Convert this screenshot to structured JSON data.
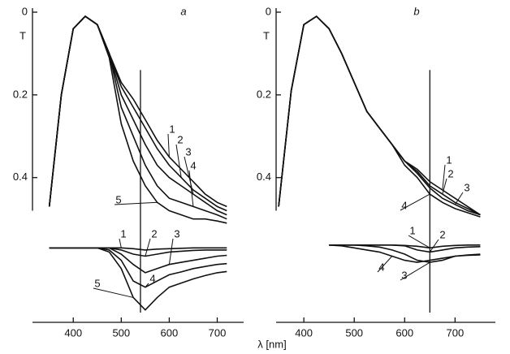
{
  "xlabel": "λ [nm]",
  "chart_data": [
    {
      "type": "line",
      "panel": "a",
      "ylabel": "T",
      "y_inverted": true,
      "xlim": [
        315,
        755
      ],
      "xticks": [
        400,
        500,
        600,
        700
      ],
      "ylim": [
        0,
        0.75
      ],
      "yticks": [
        0,
        0.2,
        0.4
      ],
      "vline": 540,
      "x": [
        350,
        375,
        400,
        425,
        450,
        475,
        500,
        525,
        550,
        575,
        600,
        625,
        650,
        675,
        700,
        720
      ],
      "series": [
        {
          "name": "1",
          "color": "#111111",
          "values": [
            0.47,
            0.2,
            0.04,
            0.01,
            0.03,
            0.1,
            0.17,
            0.21,
            0.26,
            0.31,
            0.35,
            0.38,
            0.41,
            0.44,
            0.46,
            0.47
          ]
        },
        {
          "name": "2",
          "color": "#111111",
          "values": [
            0.47,
            0.2,
            0.04,
            0.01,
            0.03,
            0.1,
            0.18,
            0.23,
            0.28,
            0.33,
            0.37,
            0.4,
            0.43,
            0.45,
            0.47,
            0.48
          ]
        },
        {
          "name": "3",
          "color": "#111111",
          "values": [
            0.47,
            0.2,
            0.04,
            0.01,
            0.03,
            0.1,
            0.2,
            0.26,
            0.32,
            0.37,
            0.4,
            0.42,
            0.44,
            0.46,
            0.48,
            0.49
          ]
        },
        {
          "name": "4",
          "color": "#111111",
          "values": [
            0.47,
            0.2,
            0.04,
            0.01,
            0.03,
            0.1,
            0.23,
            0.3,
            0.37,
            0.42,
            0.45,
            0.46,
            0.47,
            0.48,
            0.49,
            0.5
          ]
        },
        {
          "name": "5",
          "color": "#111111",
          "values": [
            0.47,
            0.2,
            0.04,
            0.01,
            0.03,
            0.11,
            0.27,
            0.36,
            0.42,
            0.46,
            0.48,
            0.49,
            0.5,
            0.5,
            0.505,
            0.51
          ]
        },
        {
          "name": "1",
          "color": "#111111",
          "values": [
            0.57,
            0.57,
            0.57,
            0.57,
            0.57,
            0.57,
            0.57,
            0.572,
            0.575,
            0.573,
            0.572,
            0.571,
            0.57,
            0.57,
            0.57,
            0.57
          ]
        },
        {
          "name": "2",
          "color": "#111111",
          "values": [
            0.57,
            0.57,
            0.57,
            0.57,
            0.57,
            0.57,
            0.575,
            0.585,
            0.59,
            0.585,
            0.58,
            0.578,
            0.576,
            0.575,
            0.575,
            0.575
          ]
        },
        {
          "name": "3",
          "color": "#111111",
          "values": [
            0.57,
            0.57,
            0.57,
            0.57,
            0.57,
            0.57,
            0.585,
            0.61,
            0.63,
            0.62,
            0.61,
            0.605,
            0.6,
            0.595,
            0.59,
            0.588
          ]
        },
        {
          "name": "4",
          "color": "#111111",
          "values": [
            0.57,
            0.57,
            0.57,
            0.57,
            0.57,
            0.575,
            0.6,
            0.65,
            0.665,
            0.65,
            0.635,
            0.628,
            0.62,
            0.615,
            0.61,
            0.608
          ]
        },
        {
          "name": "5",
          "color": "#111111",
          "values": [
            0.57,
            0.57,
            0.57,
            0.57,
            0.57,
            0.58,
            0.62,
            0.69,
            0.72,
            0.69,
            0.665,
            0.655,
            0.645,
            0.637,
            0.63,
            0.627
          ]
        }
      ]
    },
    {
      "type": "line",
      "panel": "b",
      "ylabel": "T",
      "y_inverted": true,
      "xlim": [
        345,
        780
      ],
      "xticks": [
        400,
        500,
        600,
        700
      ],
      "ylim": [
        0,
        0.75
      ],
      "yticks": [
        0,
        0.2,
        0.4
      ],
      "vline": 650,
      "x": [
        350,
        375,
        400,
        425,
        450,
        475,
        500,
        525,
        550,
        575,
        600,
        625,
        650,
        675,
        700,
        725,
        750
      ],
      "series": [
        {
          "name": "1",
          "color": "#111111",
          "values": [
            0.47,
            0.19,
            0.03,
            0.01,
            0.04,
            0.1,
            0.17,
            0.24,
            0.28,
            0.32,
            0.36,
            0.38,
            0.41,
            0.43,
            0.45,
            0.47,
            0.49
          ]
        },
        {
          "name": "2",
          "color": "#111111",
          "values": [
            0.47,
            0.19,
            0.03,
            0.01,
            0.04,
            0.1,
            0.17,
            0.24,
            0.28,
            0.32,
            0.36,
            0.385,
            0.42,
            0.44,
            0.46,
            0.475,
            0.49
          ]
        },
        {
          "name": "3",
          "color": "#111111",
          "values": [
            0.47,
            0.19,
            0.03,
            0.01,
            0.04,
            0.1,
            0.17,
            0.24,
            0.28,
            0.32,
            0.36,
            0.39,
            0.425,
            0.45,
            0.465,
            0.48,
            0.49
          ]
        },
        {
          "name": "4",
          "color": "#111111",
          "values": [
            0.47,
            0.19,
            0.03,
            0.01,
            0.04,
            0.1,
            0.17,
            0.24,
            0.28,
            0.32,
            0.37,
            0.4,
            0.44,
            0.46,
            0.475,
            0.485,
            0.495
          ]
        },
        {
          "name": "1",
          "color": "#111111",
          "values": [
            null,
            null,
            null,
            null,
            0.563,
            0.563,
            0.563,
            0.563,
            0.563,
            0.563,
            0.564,
            0.566,
            0.57,
            0.566,
            0.564,
            0.563,
            0.563
          ]
        },
        {
          "name": "2",
          "color": "#111111",
          "values": [
            null,
            null,
            null,
            null,
            0.563,
            0.563,
            0.563,
            0.563,
            0.563,
            0.563,
            0.565,
            0.575,
            0.58,
            0.575,
            0.57,
            0.568,
            0.567
          ]
        },
        {
          "name": "3",
          "color": "#111111",
          "values": [
            null,
            null,
            null,
            null,
            0.563,
            0.563,
            0.563,
            0.565,
            0.568,
            0.575,
            0.585,
            0.6,
            0.605,
            0.6,
            0.59,
            0.587,
            0.585
          ]
        },
        {
          "name": "4",
          "color": "#111111",
          "values": [
            null,
            null,
            null,
            null,
            0.563,
            0.565,
            0.57,
            0.575,
            0.58,
            0.59,
            0.6,
            0.605,
            0.6,
            0.595,
            0.59,
            0.588,
            0.587
          ]
        }
      ]
    }
  ]
}
